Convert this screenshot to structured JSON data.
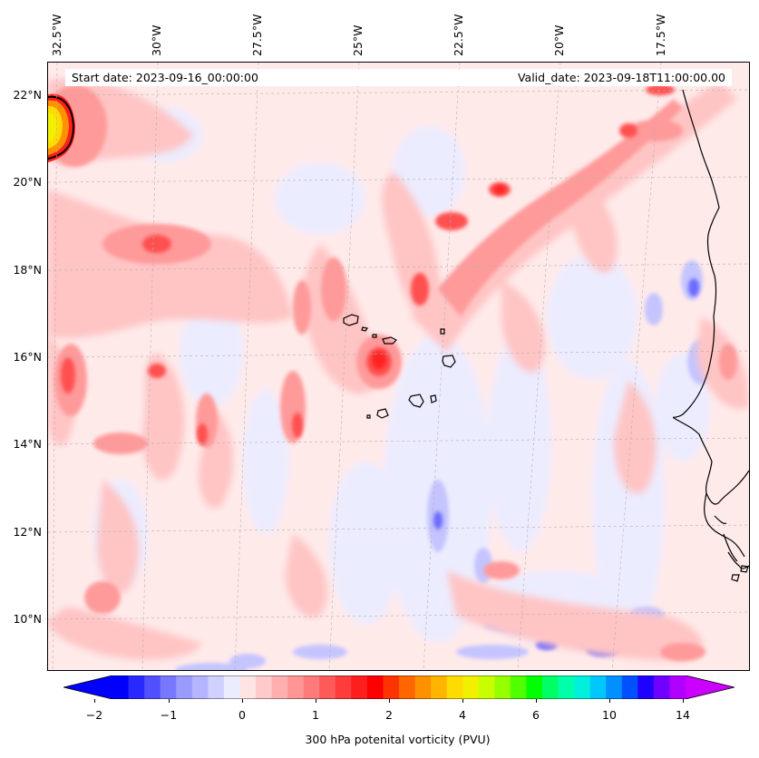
{
  "header": {
    "start_date": "Start date: 2023-09-16_00:00:00",
    "valid_date": "Valid_date: 2023-09-18T11:00:00.00"
  },
  "longitude_labels": [
    "32.5°W",
    "30°W",
    "27.5°W",
    "25°W",
    "22.5°W",
    "20°W",
    "17.5°W"
  ],
  "latitude_labels": [
    "22°N",
    "20°N",
    "18°N",
    "16°N",
    "14°N",
    "12°N",
    "10°N"
  ],
  "colorbar": {
    "label": "300 hPa potenital vorticity (PVU)",
    "tick_labels": [
      "−2",
      "−1",
      "0",
      "1",
      "2",
      "4",
      "6",
      "10",
      "14"
    ],
    "colors": [
      "#0000ff",
      "#2828ff",
      "#5050ff",
      "#7878ff",
      "#9b9bff",
      "#b4b4ff",
      "#d0d0ff",
      "#ececff",
      "#ffe4e4",
      "#ffcaca",
      "#ffafaf",
      "#ff9595",
      "#ff7a7a",
      "#ff5a5a",
      "#ff3c3c",
      "#ff1e1e",
      "#ff0000",
      "#ff3300",
      "#ff6600",
      "#ff9000",
      "#ffb400",
      "#ffdc00",
      "#f0f000",
      "#c8ff00",
      "#96ff00",
      "#50ff00",
      "#00ff00",
      "#00ff66",
      "#00ffaa",
      "#00f0dc",
      "#00c8ff",
      "#0090ff",
      "#0050ff",
      "#2000ff",
      "#7000ff",
      "#b000ff"
    ],
    "under_color": "#0000ff",
    "over_color": "#cc00ff"
  },
  "map_style": {
    "background": "#ffeaea",
    "coastline_color": "#000000",
    "grid_color": "#b0b0b0"
  }
}
